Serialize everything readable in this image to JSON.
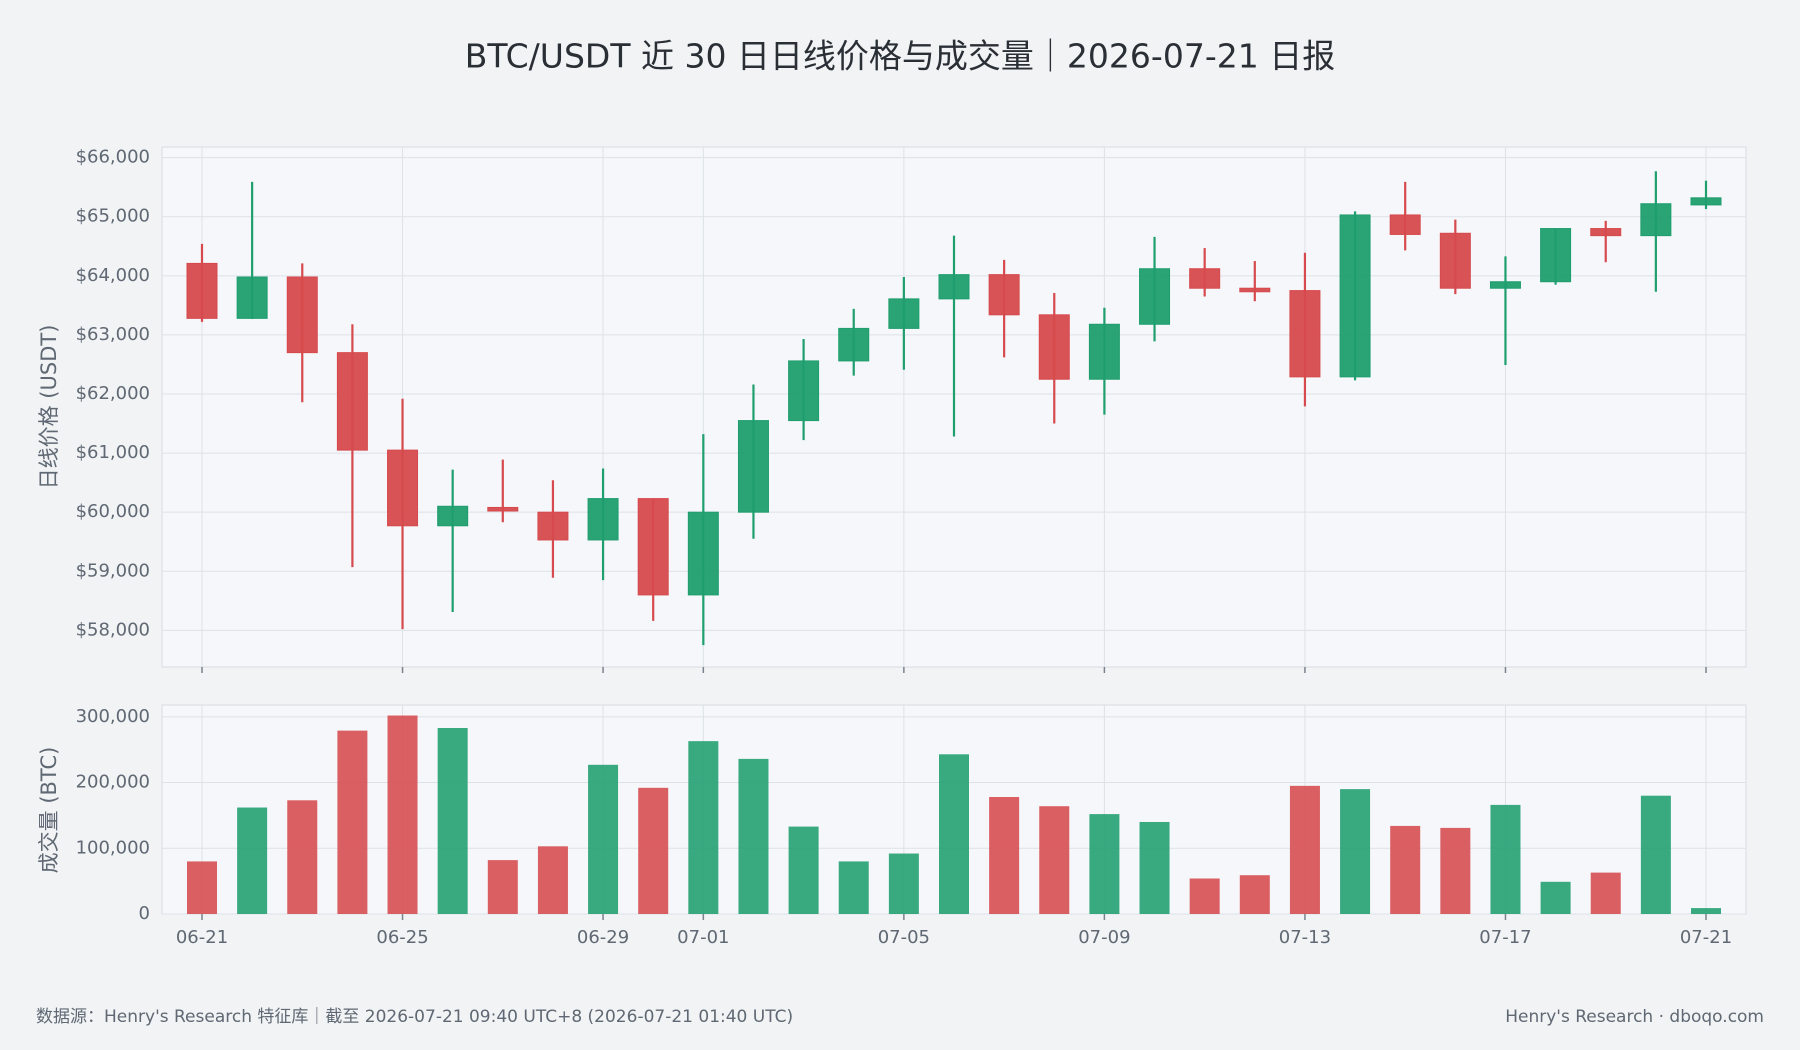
{
  "chart_data": [
    {
      "type": "candlestick",
      "title": "BTC/USDT 近 30 日日线价格与成交量｜2026-07-21 日报",
      "ylabel": "日线价格 (USDT)",
      "categories": [
        "06-21",
        null,
        null,
        null,
        "06-25",
        null,
        null,
        null,
        "06-29",
        null,
        "07-01",
        null,
        null,
        null,
        "07-05",
        null,
        null,
        null,
        "07-09",
        null,
        null,
        null,
        "07-13",
        null,
        null,
        null,
        "07-17",
        null,
        null,
        null,
        "07-21"
      ],
      "open": [
        64210,
        63280,
        63980,
        62700,
        61050,
        59770,
        60080,
        60000,
        59530,
        60230,
        58600,
        60000,
        61550,
        62560,
        63110,
        63610,
        64020,
        63340,
        62250,
        63180,
        64120,
        63790,
        63750,
        62290,
        65030,
        64720,
        63790,
        63900,
        64800,
        64680,
        65200
      ],
      "high": [
        64540,
        65590,
        64210,
        63180,
        61920,
        60720,
        60890,
        60540,
        60740,
        60230,
        61320,
        62160,
        62930,
        63440,
        63980,
        64680,
        64270,
        63710,
        63460,
        64660,
        64470,
        64250,
        64390,
        65090,
        65590,
        64950,
        64330,
        64800,
        64930,
        65770,
        65610
      ],
      "low": [
        63220,
        63270,
        61860,
        59070,
        58020,
        58310,
        59830,
        58890,
        58850,
        58160,
        57750,
        59550,
        61220,
        62310,
        62410,
        61280,
        62620,
        61500,
        61650,
        62890,
        63650,
        63570,
        61790,
        62230,
        64430,
        63690,
        62490,
        63850,
        64230,
        63730,
        65130
      ],
      "close": [
        63280,
        63980,
        62700,
        61050,
        59770,
        60100,
        60020,
        59530,
        60230,
        58600,
        60000,
        61550,
        62560,
        63110,
        63610,
        64020,
        63340,
        62250,
        63180,
        64120,
        63790,
        63730,
        62290,
        65030,
        64700,
        63790,
        63900,
        64800,
        64680,
        65220,
        65320
      ],
      "up_color": "#1f9e6e",
      "down_color": "#d64a4d",
      "ylim": [
        57380,
        66180
      ],
      "yticks": [
        {
          "value": 58000,
          "label": "$58,000"
        },
        {
          "value": 59000,
          "label": "$59,000"
        },
        {
          "value": 60000,
          "label": "$60,000"
        },
        {
          "value": 61000,
          "label": "$61,000"
        },
        {
          "value": 62000,
          "label": "$62,000"
        },
        {
          "value": 63000,
          "label": "$63,000"
        },
        {
          "value": 64000,
          "label": "$64,000"
        },
        {
          "value": 65000,
          "label": "$65,000"
        },
        {
          "value": 66000,
          "label": "$66,000"
        }
      ],
      "grid": true
    },
    {
      "type": "bar",
      "ylabel": "成交量 (BTC)",
      "values": [
        80000,
        162000,
        173000,
        279000,
        302000,
        283000,
        82000,
        103000,
        227000,
        192000,
        263000,
        236000,
        133000,
        80000,
        92000,
        243000,
        178000,
        164000,
        152000,
        140000,
        54000,
        59000,
        195000,
        190000,
        134000,
        131000,
        166000,
        49000,
        63000,
        180000,
        9000
      ],
      "ylim": [
        0,
        318000
      ],
      "yticks": [
        0,
        {
          "value": 100000,
          "label": "100,000"
        },
        {
          "value": 200000,
          "label": "200,000"
        },
        {
          "value": 300000,
          "label": "300,000"
        }
      ],
      "grid": true
    }
  ],
  "footer": {
    "source": "数据源：Henry's Research 特征库｜截至 2026-07-21 09:40 UTC+8 (2026-07-21 01:40 UTC)",
    "credit": "Henry's Research · dboqo.com"
  }
}
